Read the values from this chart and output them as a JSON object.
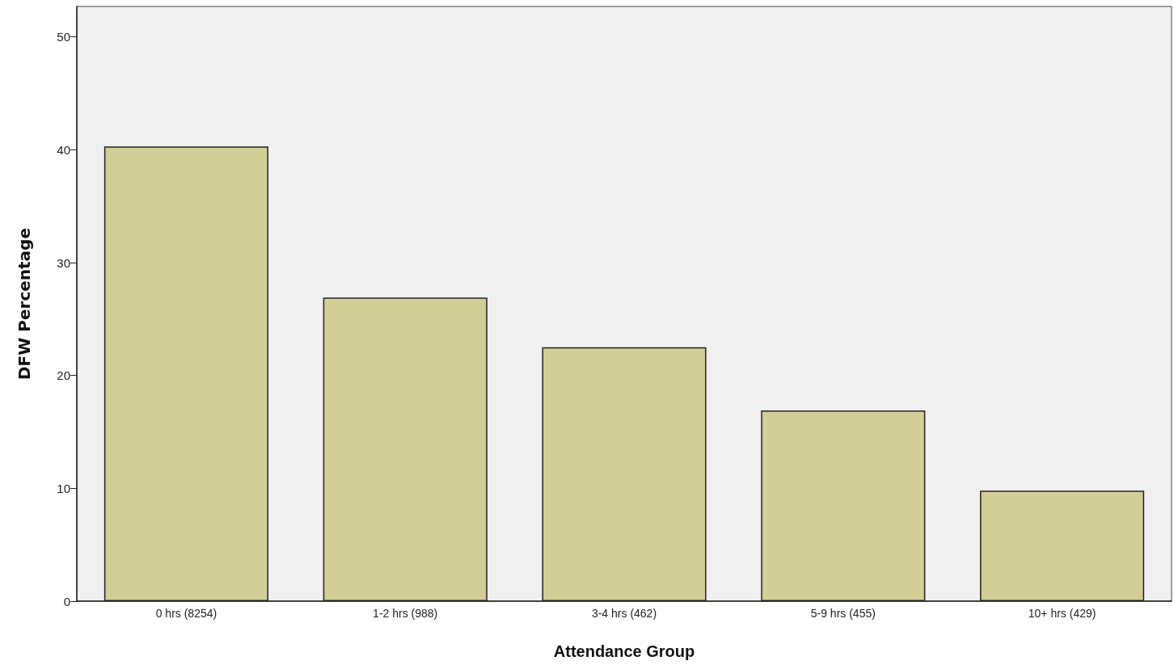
{
  "chart_data": {
    "type": "bar",
    "xlabel": "Attendance Group",
    "ylabel": "DFW Percentage",
    "categories": [
      "0 hrs (8254)",
      "1-2 hrs (988)",
      "3-4 hrs (462)",
      "5-9 hrs (455)",
      "10+ hrs (429)"
    ],
    "values": [
      40.3,
      26.9,
      22.5,
      16.9,
      9.8
    ],
    "color": "#d3ce98",
    "ylim": [
      0,
      52.7
    ],
    "yticks": [
      0,
      10,
      20,
      30,
      40,
      50
    ],
    "grid": false
  }
}
